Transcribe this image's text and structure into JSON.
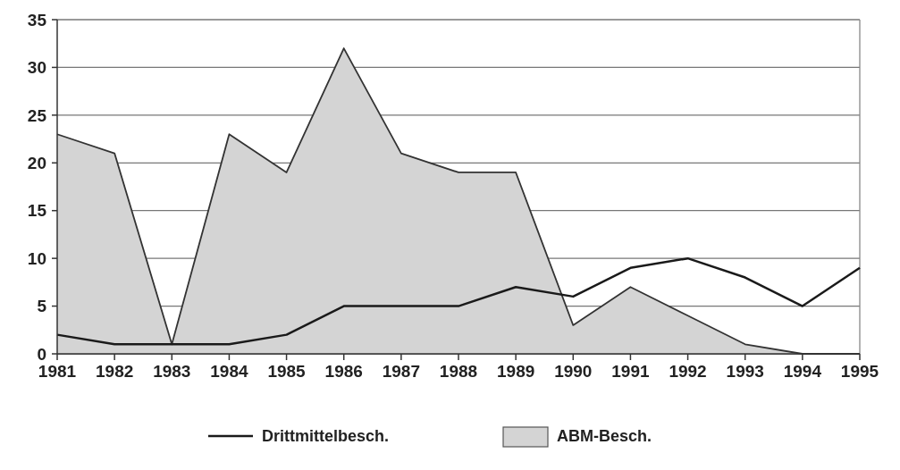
{
  "chart_data": {
    "type": "line",
    "categories": [
      "1981",
      "1982",
      "1983",
      "1984",
      "1985",
      "1986",
      "1987",
      "1988",
      "1989",
      "1990",
      "1991",
      "1992",
      "1993",
      "1994",
      "1995"
    ],
    "series": [
      {
        "name": "Drittmittelbesch.",
        "color": "#1a1a1a",
        "values": [
          2,
          1,
          1,
          1,
          2,
          5,
          5,
          5,
          7,
          6,
          9,
          10,
          8,
          5,
          9
        ]
      },
      {
        "name": "ABM-Besch.",
        "type": "area",
        "color": "#d4d4d4",
        "values": [
          23,
          21,
          1,
          23,
          19,
          32,
          21,
          19,
          19,
          3,
          7,
          4,
          1,
          0,
          0
        ]
      }
    ],
    "ylim": [
      0,
      35
    ],
    "yticks": [
      0,
      5,
      10,
      15,
      20,
      25,
      30,
      35
    ],
    "grid": "y",
    "legend": "bottom"
  }
}
